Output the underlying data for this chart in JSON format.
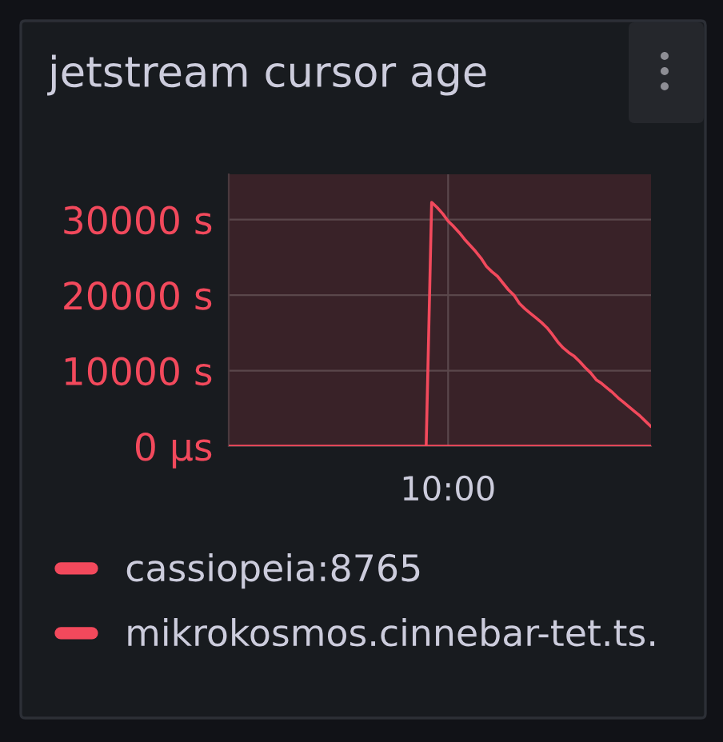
{
  "chart_data": {
    "type": "line",
    "title": "jetstream cursor age",
    "categories": [
      null,
      null,
      null,
      null,
      null,
      null,
      null,
      null,
      null,
      null,
      null,
      null,
      null,
      null,
      null,
      null,
      null,
      null,
      null,
      null,
      null,
      null,
      null,
      null,
      null,
      null,
      null,
      null,
      null,
      null,
      null,
      null,
      null,
      null,
      null,
      null,
      null,
      null,
      null,
      null,
      "10:00",
      null,
      null,
      null,
      null,
      null,
      null,
      null,
      null,
      null,
      null,
      null,
      null,
      null,
      null,
      null,
      null,
      null,
      null,
      null,
      null,
      null,
      null,
      null,
      null,
      null,
      null,
      null,
      null,
      null,
      null,
      null,
      null,
      null,
      null,
      null,
      null,
      null
    ],
    "ylim": [
      0,
      36000
    ],
    "yticks": [
      {
        "value": 0,
        "label": "0 µs"
      },
      {
        "value": 10000,
        "label": "10000 s"
      },
      {
        "value": 20000,
        "label": "20000 s"
      },
      {
        "value": 30000,
        "label": "30000 s"
      }
    ],
    "grid": true,
    "legend": "bottom",
    "series": [
      {
        "name": "cassiopeia:8765",
        "color": "#f2495c",
        "values": [
          0,
          0,
          0,
          0,
          0,
          0,
          0,
          0,
          0,
          0,
          0,
          0,
          0,
          0,
          0,
          0,
          0,
          0,
          0,
          0,
          0,
          0,
          0,
          0,
          0,
          0,
          0,
          0,
          0,
          0,
          0,
          0,
          0,
          0,
          0,
          0,
          0,
          0,
          0,
          0,
          0,
          0,
          0,
          0,
          0,
          0,
          0,
          0,
          0,
          0,
          0,
          0,
          0,
          0,
          0,
          0,
          0,
          0,
          0,
          0,
          0,
          0,
          0,
          0,
          0,
          0,
          0,
          0,
          0,
          0,
          0,
          0,
          0,
          0,
          0,
          0,
          0,
          0
        ]
      },
      {
        "name": "mikrokosmos.cinnebar-tet.ts.",
        "color": "#f2495c",
        "values": [
          null,
          null,
          null,
          null,
          null,
          null,
          null,
          null,
          null,
          null,
          null,
          null,
          null,
          null,
          null,
          null,
          null,
          null,
          null,
          null,
          null,
          null,
          null,
          null,
          null,
          null,
          null,
          null,
          null,
          null,
          null,
          null,
          null,
          null,
          null,
          null,
          0,
          32300,
          31600,
          30800,
          29800,
          29100,
          28300,
          27400,
          26600,
          25800,
          24900,
          23800,
          23100,
          22500,
          21600,
          20700,
          20000,
          18900,
          18200,
          17600,
          17000,
          16400,
          15700,
          14800,
          13800,
          13000,
          12400,
          11900,
          11200,
          10400,
          9700,
          8800,
          8300,
          7700,
          7100,
          6400,
          5800,
          5200,
          4600,
          4000,
          3300,
          2600
        ]
      }
    ]
  }
}
